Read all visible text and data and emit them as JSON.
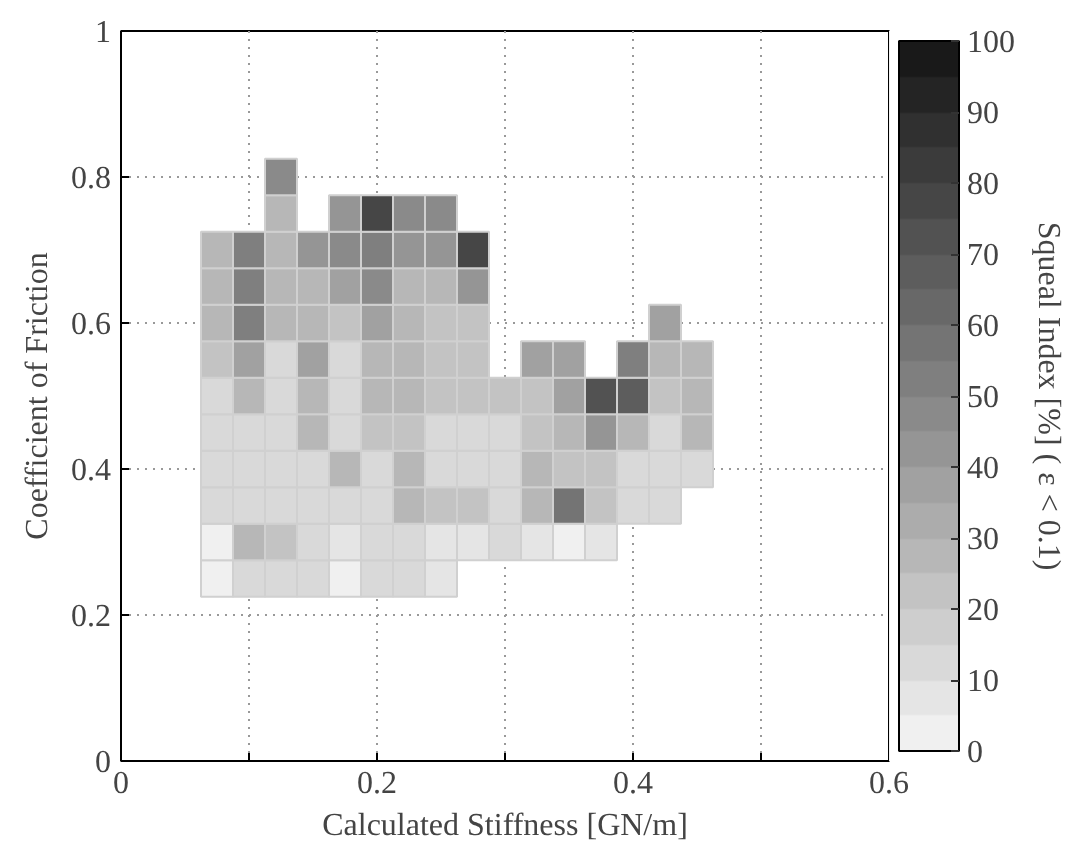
{
  "chart_data": {
    "type": "scatter",
    "marker": "square",
    "xlabel": "Calculated Stiffness [GN/m]",
    "ylabel": "Coefficient of Friction",
    "clabel": "Squeal Index [%] ( ε < 0.1)",
    "x": [
      0.075,
      0.075,
      0.075,
      0.075,
      0.075,
      0.075,
      0.075,
      0.075,
      0.075,
      0.075,
      0.1,
      0.1,
      0.1,
      0.1,
      0.1,
      0.1,
      0.1,
      0.1,
      0.1,
      0.1,
      0.125,
      0.125,
      0.125,
      0.125,
      0.125,
      0.125,
      0.125,
      0.125,
      0.125,
      0.125,
      0.125,
      0.125,
      0.15,
      0.15,
      0.15,
      0.15,
      0.15,
      0.15,
      0.15,
      0.15,
      0.15,
      0.15,
      0.175,
      0.175,
      0.175,
      0.175,
      0.175,
      0.175,
      0.175,
      0.175,
      0.175,
      0.175,
      0.175,
      0.2,
      0.2,
      0.2,
      0.2,
      0.2,
      0.2,
      0.2,
      0.2,
      0.2,
      0.2,
      0.2,
      0.225,
      0.225,
      0.225,
      0.225,
      0.225,
      0.225,
      0.225,
      0.225,
      0.225,
      0.225,
      0.225,
      0.25,
      0.25,
      0.25,
      0.25,
      0.25,
      0.25,
      0.25,
      0.25,
      0.25,
      0.25,
      0.25,
      0.275,
      0.275,
      0.275,
      0.275,
      0.275,
      0.275,
      0.275,
      0.275,
      0.275,
      0.3,
      0.3,
      0.3,
      0.3,
      0.3,
      0.325,
      0.325,
      0.325,
      0.325,
      0.325,
      0.325,
      0.35,
      0.35,
      0.35,
      0.35,
      0.35,
      0.35,
      0.375,
      0.375,
      0.375,
      0.375,
      0.375,
      0.4,
      0.4,
      0.4,
      0.4,
      0.4,
      0.425,
      0.425,
      0.425,
      0.425,
      0.425,
      0.425,
      0.45,
      0.45,
      0.45,
      0.45
    ],
    "values": [
      0.25,
      0.3,
      0.35,
      0.4,
      0.45,
      0.5,
      0.55,
      0.6,
      0.65,
      0.7,
      0.25,
      0.3,
      0.35,
      0.4,
      0.45,
      0.5,
      0.55,
      0.6,
      0.65,
      0.7,
      0.25,
      0.3,
      0.35,
      0.4,
      0.45,
      0.5,
      0.55,
      0.6,
      0.65,
      0.7,
      0.75,
      0.8,
      0.25,
      0.3,
      0.35,
      0.4,
      0.45,
      0.5,
      0.55,
      0.6,
      0.65,
      0.7,
      0.25,
      0.3,
      0.35,
      0.4,
      0.45,
      0.5,
      0.55,
      0.6,
      0.65,
      0.7,
      0.75,
      0.25,
      0.3,
      0.35,
      0.4,
      0.45,
      0.5,
      0.55,
      0.6,
      0.65,
      0.7,
      0.75,
      0.25,
      0.3,
      0.35,
      0.4,
      0.45,
      0.5,
      0.55,
      0.6,
      0.65,
      0.7,
      0.75,
      0.25,
      0.3,
      0.35,
      0.4,
      0.45,
      0.5,
      0.55,
      0.6,
      0.65,
      0.7,
      0.75,
      0.3,
      0.35,
      0.4,
      0.45,
      0.5,
      0.55,
      0.6,
      0.65,
      0.7,
      0.3,
      0.35,
      0.4,
      0.45,
      0.5,
      0.3,
      0.35,
      0.4,
      0.45,
      0.5,
      0.55,
      0.3,
      0.35,
      0.4,
      0.45,
      0.5,
      0.55,
      0.3,
      0.35,
      0.4,
      0.45,
      0.5,
      0.35,
      0.4,
      0.45,
      0.5,
      0.55,
      0.35,
      0.4,
      0.45,
      0.5,
      0.55,
      0.6,
      0.4,
      0.45,
      0.5,
      0.55
    ],
    "cvalues": [
      0,
      0,
      10,
      10,
      10,
      15,
      20,
      25,
      25,
      25,
      15,
      25,
      15,
      15,
      15,
      25,
      35,
      50,
      50,
      50,
      10,
      20,
      15,
      15,
      15,
      15,
      15,
      25,
      25,
      30,
      30,
      45,
      10,
      10,
      15,
      15,
      25,
      25,
      35,
      30,
      30,
      40,
      0,
      5,
      15,
      25,
      15,
      15,
      15,
      20,
      35,
      45,
      40,
      10,
      15,
      15,
      15,
      20,
      25,
      30,
      35,
      45,
      50,
      75,
      10,
      15,
      25,
      25,
      20,
      25,
      25,
      25,
      30,
      40,
      45,
      5,
      5,
      20,
      10,
      15,
      20,
      20,
      20,
      30,
      40,
      45,
      5,
      20,
      10,
      15,
      20,
      20,
      20,
      40,
      75,
      15,
      10,
      10,
      15,
      20,
      5,
      30,
      30,
      20,
      20,
      35,
      0,
      55,
      20,
      25,
      35,
      35,
      5,
      20,
      20,
      40,
      70,
      15,
      15,
      30,
      65,
      50,
      15,
      15,
      10,
      20,
      30,
      35,
      15,
      25,
      25,
      25
    ],
    "clim": [
      0,
      100
    ],
    "cticks": [
      0,
      10,
      20,
      30,
      40,
      50,
      60,
      70,
      80,
      90,
      100
    ],
    "xlim": [
      0,
      0.6
    ],
    "xticks": [
      0,
      {
        "value": 0.1,
        "label": null
      },
      0.2,
      {
        "value": 0.3,
        "label": null
      },
      0.4,
      {
        "value": 0.5,
        "label": null
      },
      0.6
    ],
    "ylim": [
      0,
      1
    ],
    "yticks": [
      0,
      0.2,
      0.4,
      0.6,
      0.8,
      1
    ],
    "grid": true
  }
}
